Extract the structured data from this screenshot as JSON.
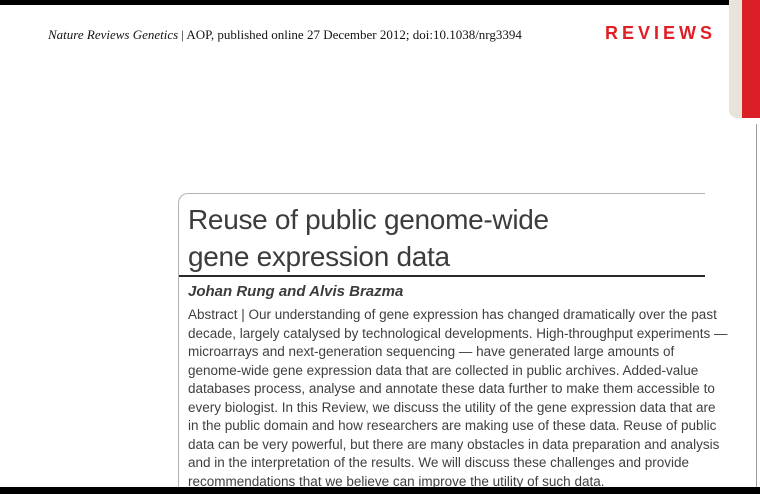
{
  "header": {
    "journal_italic": "Nature Reviews Genetics",
    "citation_rest": "| AOP, published online 27 December 2012; doi:10.1038/nrg3394",
    "section_label": "REVIEWS"
  },
  "article": {
    "title_lines": [
      "Reuse of public genome-wide",
      "gene expression data"
    ],
    "authors": "Johan Rung and Alvis Brazma",
    "abstract_lines": [
      "Abstract | Our understanding of gene expression has changed dramatically over the past",
      "decade, largely catalysed by technological developments. High-throughput experiments —",
      "microarrays and next-generation sequencing — have generated large amounts of",
      "genome-wide gene expression data that are collected in public archives. Added-value",
      "databases process, analyse and annotate these data further to make them accessible to",
      "every biologist. In this Review, we discuss the utility of the gene expression data that are",
      "in the public domain and how researchers are making use of these data. Reuse of public",
      "data can be very powerful, but there are many obstacles in data preparation and analysis",
      "and in the interpretation of the results. We will discuss these challenges and provide",
      "recommendations that we believe can improve the utility of such data."
    ]
  },
  "colors": {
    "accent_red": "#DA1F26",
    "beige_strip": "#E9E4DB",
    "text_dark": "#3C3C3C"
  }
}
